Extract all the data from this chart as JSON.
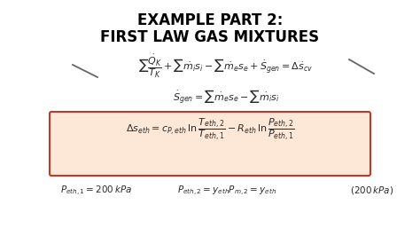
{
  "title_line1": "EXAMPLE PART 2:",
  "title_line2": "FIRST LAW GAS MIXTURES",
  "bg_color": "#ffffff",
  "title_color": "#000000",
  "eq_color": "#2a2a2a",
  "box_bg": "#fde8d8",
  "box_edge": "#c0392b",
  "figsize": [
    4.74,
    2.66
  ],
  "dpi": 100
}
